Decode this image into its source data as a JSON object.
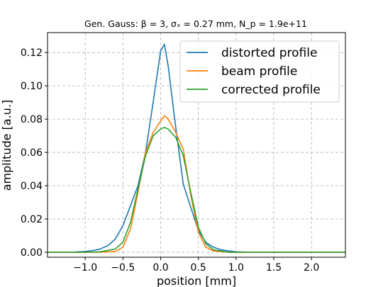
{
  "chart_data": {
    "type": "line",
    "title": "Gen. Gauss: β = 3, σₓ = 0.27 mm, N_p = 1.9e+11",
    "xlabel": "position [mm]",
    "ylabel": "amplitude [a.u.]",
    "xlim": [
      -1.5,
      2.45
    ],
    "ylim": [
      -0.003,
      0.132
    ],
    "xticks": [
      -1.0,
      -0.5,
      0.0,
      0.5,
      1.0,
      1.5,
      2.0
    ],
    "xtick_labels": [
      "−1.0",
      "−0.5",
      "0.0",
      "0.5",
      "1.0",
      "1.5",
      "2.0"
    ],
    "yticks": [
      0.0,
      0.02,
      0.04,
      0.06,
      0.08,
      0.1,
      0.12
    ],
    "ytick_labels": [
      "0.00",
      "0.02",
      "0.04",
      "0.06",
      "0.08",
      "0.10",
      "0.12"
    ],
    "grid": true,
    "legend_position": "top-right",
    "series": [
      {
        "name": "distorted profile",
        "color": "#1f77b4",
        "x": [
          -1.5,
          -1.2,
          -1.0,
          -0.9,
          -0.8,
          -0.7,
          -0.6,
          -0.5,
          -0.4,
          -0.3,
          -0.2,
          -0.1,
          0.0,
          0.05,
          0.1,
          0.2,
          0.3,
          0.4,
          0.5,
          0.6,
          0.7,
          0.8,
          0.9,
          1.0,
          1.2,
          1.5,
          2.45
        ],
        "y": [
          0.0,
          0.0,
          0.0005,
          0.001,
          0.002,
          0.004,
          0.008,
          0.016,
          0.028,
          0.04,
          0.06,
          0.09,
          0.121,
          0.125,
          0.112,
          0.075,
          0.041,
          0.027,
          0.013,
          0.006,
          0.003,
          0.0015,
          0.0008,
          0.0003,
          0.0,
          0.0,
          0.0
        ]
      },
      {
        "name": "beam profile",
        "color": "#ff7f0e",
        "x": [
          -1.5,
          -1.0,
          -0.8,
          -0.6,
          -0.5,
          -0.4,
          -0.3,
          -0.2,
          -0.1,
          0.0,
          0.05,
          0.1,
          0.2,
          0.3,
          0.4,
          0.5,
          0.6,
          0.7,
          0.9,
          1.1,
          1.5,
          2.45
        ],
        "y": [
          0.0,
          0.0,
          0.0,
          0.0005,
          0.003,
          0.014,
          0.036,
          0.06,
          0.072,
          0.079,
          0.082,
          0.08,
          0.072,
          0.062,
          0.034,
          0.012,
          0.003,
          0.0008,
          0.0,
          0.0,
          0.0,
          0.0
        ]
      },
      {
        "name": "corrected profile",
        "color": "#2ca02c",
        "x": [
          -1.5,
          -1.0,
          -0.8,
          -0.6,
          -0.5,
          -0.4,
          -0.3,
          -0.2,
          -0.1,
          0.0,
          0.05,
          0.1,
          0.2,
          0.3,
          0.4,
          0.5,
          0.6,
          0.7,
          0.9,
          1.1,
          1.5,
          2.45
        ],
        "y": [
          0.0,
          0.0,
          0.0003,
          0.002,
          0.006,
          0.018,
          0.038,
          0.058,
          0.07,
          0.074,
          0.075,
          0.074,
          0.069,
          0.058,
          0.036,
          0.015,
          0.005,
          0.0015,
          0.0,
          0.0,
          0.0,
          0.0
        ]
      }
    ]
  }
}
